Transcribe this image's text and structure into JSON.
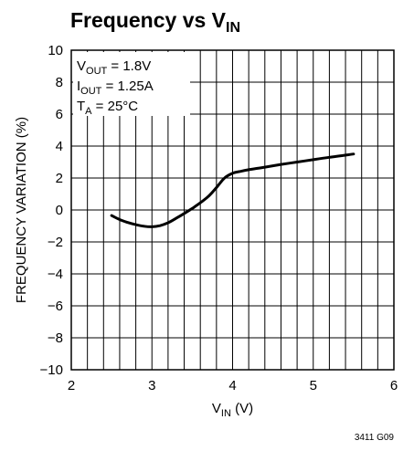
{
  "chart_data": {
    "type": "line",
    "title": {
      "main": "Frequency vs V",
      "sub": "IN"
    },
    "xlabel": {
      "main": "V",
      "sub": "IN",
      "suffix": " (V)"
    },
    "ylabel": "FREQUENCY VARIATION (%)",
    "xlim": [
      2,
      6
    ],
    "ylim": [
      -10,
      10
    ],
    "x_ticks": [
      2,
      3,
      4,
      5,
      6
    ],
    "y_ticks": [
      10,
      8,
      6,
      4,
      2,
      0,
      -2,
      -4,
      -6,
      -8,
      -10
    ],
    "y_tick_labels": [
      "10",
      "8",
      "6",
      "4",
      "2",
      "0",
      "−2",
      "−4",
      "−6",
      "−8",
      "−10"
    ],
    "x_minor_step": 0.2,
    "y_minor_step": 2,
    "grid": true,
    "annotations": [
      {
        "main": "V",
        "sub": "OUT",
        "rest": " = 1.8V"
      },
      {
        "main": "I",
        "sub": "OUT",
        "rest": " = 1.25A"
      },
      {
        "main": "T",
        "sub": "A",
        "rest": " = 25°C"
      }
    ],
    "series": [
      {
        "color": "#000000",
        "x": [
          2.5,
          2.6,
          2.7,
          2.8,
          2.9,
          3.0,
          3.1,
          3.2,
          3.3,
          3.4,
          3.5,
          3.6,
          3.7,
          3.8,
          3.9,
          4.0,
          4.1,
          4.2,
          4.4,
          4.6,
          4.8,
          5.0,
          5.2,
          5.5
        ],
        "y": [
          -0.35,
          -0.6,
          -0.78,
          -0.92,
          -1.02,
          -1.05,
          -0.98,
          -0.8,
          -0.52,
          -0.22,
          0.1,
          0.45,
          0.85,
          1.4,
          2.0,
          2.3,
          2.42,
          2.52,
          2.68,
          2.85,
          3.0,
          3.15,
          3.3,
          3.5
        ]
      }
    ]
  },
  "figure_id": "3411 G09"
}
